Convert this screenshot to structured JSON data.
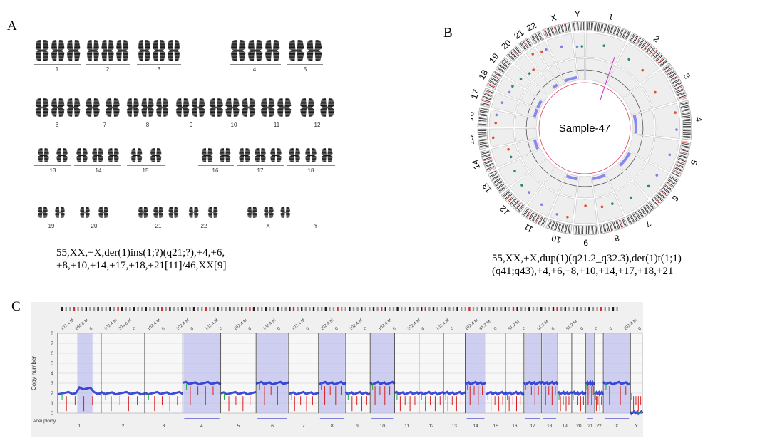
{
  "panels": {
    "a": {
      "letter": "A"
    },
    "b": {
      "letter": "B"
    },
    "c": {
      "letter": "C"
    }
  },
  "karyotype": {
    "rows": [
      [
        "1",
        "2",
        "3",
        "4",
        "5"
      ],
      [
        "6",
        "7",
        "8",
        "9",
        "10",
        "11",
        "12"
      ],
      [
        "13",
        "14",
        "15",
        "16",
        "17",
        "18"
      ],
      [
        "19",
        "20",
        "21",
        "22",
        "X",
        "Y"
      ]
    ],
    "text_line1": "55,XX,+X,der(1)ins(1;?)(q21;?),+4,+6,",
    "text_line2": "+8,+10,+14,+17,+18,+21[11]/46,XX[9]"
  },
  "circos": {
    "sample_label": "Sample-47",
    "chromosome_labels": [
      "1",
      "2",
      "3",
      "4",
      "5",
      "6",
      "7",
      "8",
      "9",
      "10",
      "11",
      "12",
      "13",
      "14",
      "15",
      "16",
      "17",
      "18",
      "19",
      "20",
      "21",
      "22",
      "X",
      "Y"
    ],
    "text_line1": "55,XX,+X,dup(1)(q21.2_q32.3),der(1)t(1;1)",
    "text_line2": "(q41;q43),+4,+6,+8,+10,+14,+17,+18,+21"
  },
  "cnv_plot": {
    "y_axis_label": "Copy number",
    "y_ticks": [
      "8",
      "7",
      "6",
      "5",
      "4",
      "3",
      "2",
      "1",
      "0"
    ],
    "aneuploidy_label": "Aneuploidy",
    "chromosome_labels": [
      "1",
      "2",
      "3",
      "4",
      "5",
      "6",
      "7",
      "8",
      "9",
      "10",
      "11",
      "12",
      "13",
      "14",
      "15",
      "16",
      "17",
      "18",
      "19",
      "20",
      "21",
      "22",
      "X",
      "Y"
    ],
    "gained_chromosomes": [
      "4",
      "6",
      "8",
      "10",
      "14",
      "17",
      "18",
      "21",
      "X"
    ],
    "partial_gain_chromosomes": [
      "1"
    ],
    "colors": {
      "gain_shade": "#b8b8ee",
      "trace_blue": "#1f2fd0",
      "loss_red": "#d42020",
      "mid_green": "#22aa44",
      "aneuploidy_bar": "#8080dd"
    },
    "top_tick_labels": [
      "102.4 M",
      "204.8 M",
      "0",
      "102.4 M",
      "204.8 M",
      "0",
      "102.4 M",
      "0",
      "102.4 M",
      "0",
      "102.4 M",
      "0",
      "102.4 M",
      "0",
      "102.4 M",
      "0",
      "102.4 M",
      "0",
      "102.4 M",
      "0",
      "102.4 M",
      "0",
      "102.4 M",
      "0",
      "102.4 M",
      "0",
      "102.4 M",
      "0",
      "102.4 M",
      "51.2 M",
      "0",
      "51.2 M",
      "0",
      "51.2 M",
      "0",
      "51.2 M",
      "0",
      "0",
      "0",
      "102.4 M",
      "0"
    ]
  }
}
